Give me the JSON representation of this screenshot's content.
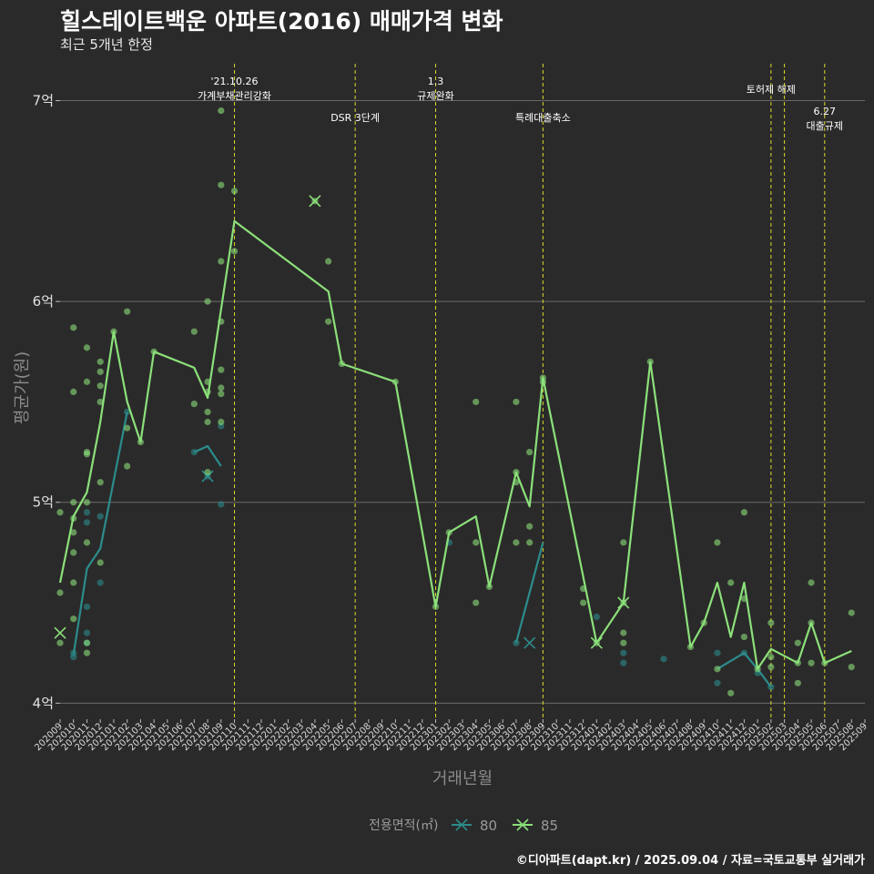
{
  "header": {
    "title": "힐스테이트백운 아파트(2016) 매매가격 변화",
    "subtitle": "최근 5개년 한정"
  },
  "footer": {
    "credit": "©디아파트(dapt.kr) / 2025.09.04 / 자료=국토교통부 실거래가"
  },
  "colors": {
    "background": "#2b2a2a",
    "grid": "#6a6a6a",
    "event_line": "#d9d92a",
    "s80": "#2c8c8c",
    "s85": "#8be07a"
  },
  "chart_data": {
    "type": "line",
    "xlabel": "거래년월",
    "ylabel": "평균가(원)",
    "x_ticks": [
      "202009",
      "202010",
      "202011",
      "202012",
      "202101",
      "202102",
      "202103",
      "202104",
      "202105",
      "202106",
      "202107",
      "202108",
      "202109",
      "202110",
      "202111",
      "202112",
      "202201",
      "202202",
      "202203",
      "202204",
      "202205",
      "202206",
      "202207",
      "202208",
      "202209",
      "202210",
      "202211",
      "202212",
      "202301",
      "202302",
      "202303",
      "202304",
      "202305",
      "202306",
      "202307",
      "202308",
      "202309",
      "202310",
      "202311",
      "202312",
      "202401",
      "202402",
      "202403",
      "202404",
      "202405",
      "202406",
      "202407",
      "202408",
      "202409",
      "202410",
      "202411",
      "202412",
      "202501",
      "202502",
      "202503",
      "202504",
      "202505",
      "202506",
      "202507",
      "202508",
      "202509"
    ],
    "y_ticks": [
      {
        "value": 4,
        "label": "4억"
      },
      {
        "value": 5,
        "label": "5억"
      },
      {
        "value": 6,
        "label": "6억"
      },
      {
        "value": 7,
        "label": "7억"
      }
    ],
    "ylim": [
      3.92,
      7.22
    ],
    "legend": {
      "title": "전용면적(㎡)",
      "position": "bottom"
    },
    "events": [
      {
        "month": "202110",
        "lines": [
          "'21.10.26",
          "가계부채관리강화"
        ],
        "row": 0
      },
      {
        "month": "202207",
        "lines": [
          "DSR 3단계"
        ],
        "row": 2
      },
      {
        "month": "202301",
        "lines": [
          "1.3",
          "규제완화"
        ],
        "row": 0
      },
      {
        "month": "202309",
        "lines": [
          "특례대출축소"
        ],
        "row": 2
      },
      {
        "month": "202502",
        "lines": [
          "토허제 해제"
        ],
        "row": 1
      },
      {
        "month": "202503",
        "lines": [],
        "row": 0
      },
      {
        "month": "202506",
        "lines": [
          "6.27",
          "대출규제"
        ],
        "row": 3
      }
    ],
    "series": [
      {
        "name": "80",
        "color": "#2c8c8c",
        "line": [
          [
            "202010",
            4.24
          ],
          [
            "202011",
            4.67
          ],
          [
            "202012",
            4.77
          ],
          [
            "202102",
            5.45
          ],
          null,
          [
            "202107",
            5.25
          ],
          [
            "202108",
            5.28
          ],
          [
            "202109",
            5.18
          ],
          null,
          [
            "202307",
            4.3
          ],
          [
            "202309",
            4.8
          ],
          null,
          [
            "202410",
            4.17
          ],
          [
            "202412",
            4.25
          ],
          [
            "202501",
            4.17
          ],
          [
            "202502",
            4.08
          ]
        ],
        "points": [
          [
            "202010",
            4.25
          ],
          [
            "202010",
            4.23
          ],
          [
            "202011",
            4.95
          ],
          [
            "202011",
            4.9
          ],
          [
            "202011",
            4.48
          ],
          [
            "202011",
            4.35
          ],
          [
            "202011",
            4.3
          ],
          [
            "202012",
            4.93
          ],
          [
            "202012",
            4.6
          ],
          [
            "202102",
            5.45
          ],
          [
            "202107",
            5.25
          ],
          [
            "202108",
            5.13
          ],
          [
            "202109",
            5.38
          ],
          [
            "202109",
            4.99
          ],
          [
            "202302",
            4.8
          ],
          [
            "202307",
            4.3
          ],
          [
            "202401",
            4.43
          ],
          [
            "202403",
            4.25
          ],
          [
            "202403",
            4.2
          ],
          [
            "202406",
            4.22
          ],
          [
            "202410",
            4.25
          ],
          [
            "202410",
            4.1
          ],
          [
            "202412",
            4.25
          ],
          [
            "202501",
            4.15
          ],
          [
            "202502",
            4.08
          ]
        ],
        "crosses": [
          [
            "202108",
            5.13
          ],
          [
            "202308",
            4.3
          ]
        ]
      },
      {
        "name": "85",
        "color": "#8be07a",
        "line": [
          [
            "202009",
            4.6
          ],
          [
            "202010",
            4.93
          ],
          [
            "202011",
            5.05
          ],
          [
            "202012",
            5.4
          ],
          [
            "202101",
            5.85
          ],
          [
            "202102",
            5.5
          ],
          [
            "202103",
            5.3
          ],
          [
            "202104",
            5.75
          ],
          [
            "202107",
            5.67
          ],
          [
            "202108",
            5.52
          ],
          [
            "202110",
            6.4
          ],
          [
            "202205",
            6.05
          ],
          [
            "202206",
            5.69
          ],
          [
            "202210",
            5.6
          ],
          [
            "202301",
            4.48
          ],
          [
            "202302",
            4.85
          ],
          [
            "202304",
            4.93
          ],
          [
            "202305",
            4.58
          ],
          [
            "202307",
            5.15
          ],
          [
            "202308",
            4.98
          ],
          [
            "202309",
            5.62
          ],
          [
            "202401",
            4.3
          ],
          [
            "202403",
            4.5
          ],
          [
            "202405",
            5.7
          ],
          [
            "202408",
            4.28
          ],
          [
            "202409",
            4.4
          ],
          [
            "202410",
            4.6
          ],
          [
            "202411",
            4.33
          ],
          [
            "202412",
            4.6
          ],
          [
            "202501",
            4.17
          ],
          [
            "202502",
            4.27
          ],
          [
            "202504",
            4.2
          ],
          [
            "202505",
            4.4
          ],
          [
            "202506",
            4.2
          ],
          [
            "202508",
            4.26
          ]
        ],
        "points": [
          [
            "202009",
            4.95
          ],
          [
            "202009",
            4.55
          ],
          [
            "202009",
            4.3
          ],
          [
            "202010",
            5.87
          ],
          [
            "202010",
            5.55
          ],
          [
            "202010",
            5
          ],
          [
            "202010",
            4.92
          ],
          [
            "202010",
            4.85
          ],
          [
            "202010",
            4.75
          ],
          [
            "202010",
            4.6
          ],
          [
            "202010",
            4.42
          ],
          [
            "202011",
            5.77
          ],
          [
            "202011",
            5.6
          ],
          [
            "202011",
            5.25
          ],
          [
            "202011",
            5.24
          ],
          [
            "202011",
            5
          ],
          [
            "202011",
            4.8
          ],
          [
            "202011",
            4.3
          ],
          [
            "202011",
            4.25
          ],
          [
            "202012",
            5.7
          ],
          [
            "202012",
            5.65
          ],
          [
            "202012",
            5.58
          ],
          [
            "202012",
            5.5
          ],
          [
            "202012",
            5.1
          ],
          [
            "202012",
            4.7
          ],
          [
            "202101",
            5.85
          ],
          [
            "202102",
            5.95
          ],
          [
            "202102",
            5.37
          ],
          [
            "202102",
            5.18
          ],
          [
            "202103",
            5.3
          ],
          [
            "202104",
            5.75
          ],
          [
            "202107",
            5.85
          ],
          [
            "202107",
            5.49
          ],
          [
            "202108",
            6
          ],
          [
            "202108",
            5.6
          ],
          [
            "202108",
            5.55
          ],
          [
            "202108",
            5.45
          ],
          [
            "202108",
            5.4
          ],
          [
            "202108",
            5.15
          ],
          [
            "202109",
            6.95
          ],
          [
            "202109",
            6.58
          ],
          [
            "202109",
            6.2
          ],
          [
            "202109",
            5.9
          ],
          [
            "202109",
            5.66
          ],
          [
            "202109",
            5.57
          ],
          [
            "202109",
            5.54
          ],
          [
            "202109",
            5.4
          ],
          [
            "202110",
            6.55
          ],
          [
            "202110",
            6.25
          ],
          [
            "202204",
            6.5
          ],
          [
            "202205",
            6.2
          ],
          [
            "202205",
            5.9
          ],
          [
            "202206",
            5.69
          ],
          [
            "202210",
            5.6
          ],
          [
            "202301",
            4.48
          ],
          [
            "202302",
            4.85
          ],
          [
            "202304",
            5.5
          ],
          [
            "202304",
            4.8
          ],
          [
            "202304",
            4.5
          ],
          [
            "202305",
            4.58
          ],
          [
            "202307",
            5.5
          ],
          [
            "202307",
            5.15
          ],
          [
            "202307",
            5.1
          ],
          [
            "202307",
            4.8
          ],
          [
            "202308",
            5.25
          ],
          [
            "202308",
            4.88
          ],
          [
            "202308",
            4.8
          ],
          [
            "202309",
            5.62
          ],
          [
            "202309",
            5.6
          ],
          [
            "202312",
            4.57
          ],
          [
            "202312",
            4.5
          ],
          [
            "202401",
            4.3
          ],
          [
            "202403",
            4.8
          ],
          [
            "202403",
            4.5
          ],
          [
            "202403",
            4.35
          ],
          [
            "202403",
            4.3
          ],
          [
            "202405",
            5.7
          ],
          [
            "202408",
            4.28
          ],
          [
            "202409",
            4.4
          ],
          [
            "202410",
            4.8
          ],
          [
            "202410",
            4.17
          ],
          [
            "202411",
            4.6
          ],
          [
            "202411",
            4.05
          ],
          [
            "202412",
            4.95
          ],
          [
            "202412",
            4.52
          ],
          [
            "202412",
            4.33
          ],
          [
            "202501",
            4.17
          ],
          [
            "202502",
            4.4
          ],
          [
            "202502",
            4.23
          ],
          [
            "202502",
            4.18
          ],
          [
            "202504",
            4.3
          ],
          [
            "202504",
            4.2
          ],
          [
            "202504",
            4.1
          ],
          [
            "202505",
            4.6
          ],
          [
            "202505",
            4.4
          ],
          [
            "202505",
            4.2
          ],
          [
            "202506",
            4.2
          ],
          [
            "202508",
            4.45
          ],
          [
            "202508",
            4.18
          ]
        ],
        "crosses": [
          [
            "202009",
            4.35
          ],
          [
            "202204",
            6.5
          ],
          [
            "202401",
            4.3
          ],
          [
            "202403",
            4.5
          ]
        ]
      }
    ]
  }
}
